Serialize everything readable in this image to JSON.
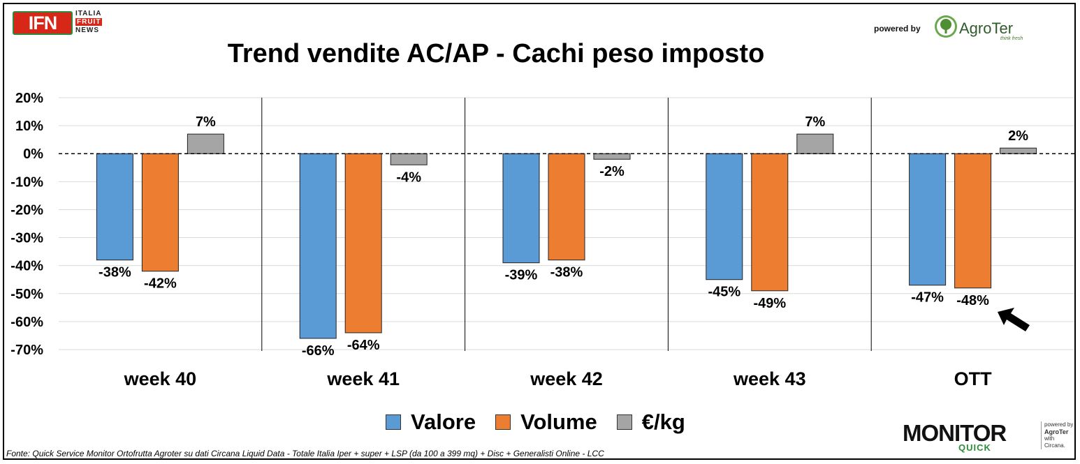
{
  "header": {
    "ifn_logo_text": "IFN",
    "ifn_words": [
      "ITALIA",
      "FRUIT",
      "NEWS"
    ],
    "powered_by": "powered by",
    "agroter_name": "AgroTer",
    "agroter_tagline": "think fresh"
  },
  "chart_data": {
    "type": "bar",
    "title": "Trend vendite AC/AP - Cachi peso imposto",
    "categories": [
      "week 40",
      "week 41",
      "week 42",
      "week 43",
      "OTT"
    ],
    "series": [
      {
        "name": "Valore",
        "color": "#5b9bd5",
        "values": [
          -38,
          -66,
          -39,
          -45,
          -47
        ],
        "labels": [
          "-38%",
          "-66%",
          "-39%",
          "-45%",
          "-47%"
        ]
      },
      {
        "name": "Volume",
        "color": "#ed7d31",
        "values": [
          -42,
          -64,
          -38,
          -49,
          -48
        ],
        "labels": [
          "-42%",
          "-64%",
          "-38%",
          "-49%",
          "-48%"
        ]
      },
      {
        "name": "€/kg",
        "color": "#a5a5a5",
        "values": [
          7,
          -4,
          -2,
          7,
          2
        ],
        "labels": [
          "7%",
          "-4%",
          "-2%",
          "7%",
          "2%"
        ]
      }
    ],
    "ylim": [
      -70,
      20
    ],
    "yticks": [
      20,
      10,
      0,
      -10,
      -20,
      -30,
      -40,
      -50,
      -60,
      -70
    ],
    "ytick_labels": [
      "20%",
      "10%",
      "0%",
      "-10%",
      "-20%",
      "-30%",
      "-40%",
      "-50%",
      "-60%",
      "-70%"
    ],
    "grid": true,
    "zero_line": "dashed",
    "legend_position": "bottom",
    "annotation": "arrow pointing to OTT Volume"
  },
  "footer": {
    "source": "Fonte: Quick Service Monitor Ortofrutta Agroter su dati Circana Liquid Data - Totale Italia Iper + super + LSP (da 100 a 399 mq) + Disc + Generalisti Online - LCC",
    "monitor_word": "MONITOR",
    "monitor_quick": "QUICK",
    "monitor_side": [
      "powered by",
      "AgroTer",
      "with",
      "Circana."
    ]
  }
}
